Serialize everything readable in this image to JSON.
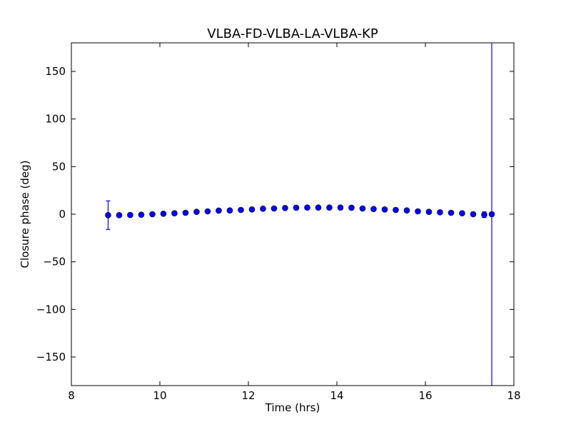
{
  "chart_data": {
    "type": "scatter",
    "title": "VLBA-FD-VLBA-LA-VLBA-KP",
    "xlabel": "Time (hrs)",
    "ylabel": "Closure phase (deg)",
    "xlim": [
      8,
      18
    ],
    "ylim": [
      -180,
      180
    ],
    "grid": false,
    "xticks": [
      8,
      10,
      12,
      14,
      16,
      18
    ],
    "xtick_labels": [
      "8",
      "10",
      "12",
      "14",
      "16",
      "18"
    ],
    "yticks": [
      -150,
      -100,
      -50,
      0,
      50,
      100,
      150
    ],
    "ytick_labels": [
      "−150",
      "−100",
      "−50",
      "0",
      "50",
      "100",
      "150"
    ],
    "colors": {
      "marker": "#0000ff",
      "marker_edge": "#000000",
      "errorbar": "#0000ff"
    },
    "points": [
      {
        "x": 8.83,
        "y": -1.0,
        "err": 15
      },
      {
        "x": 9.08,
        "y": -1.0
      },
      {
        "x": 9.33,
        "y": -0.8
      },
      {
        "x": 9.58,
        "y": -0.5
      },
      {
        "x": 9.83,
        "y": 0.0
      },
      {
        "x": 10.08,
        "y": 0.5
      },
      {
        "x": 10.33,
        "y": 1.0
      },
      {
        "x": 10.58,
        "y": 1.5
      },
      {
        "x": 10.83,
        "y": 2.5
      },
      {
        "x": 11.08,
        "y": 3.0
      },
      {
        "x": 11.33,
        "y": 3.8
      },
      {
        "x": 11.58,
        "y": 4.0
      },
      {
        "x": 11.83,
        "y": 4.5
      },
      {
        "x": 12.08,
        "y": 5.0
      },
      {
        "x": 12.33,
        "y": 5.8
      },
      {
        "x": 12.58,
        "y": 6.0
      },
      {
        "x": 12.83,
        "y": 6.5
      },
      {
        "x": 13.08,
        "y": 6.8
      },
      {
        "x": 13.33,
        "y": 7.0
      },
      {
        "x": 13.58,
        "y": 7.0
      },
      {
        "x": 13.83,
        "y": 7.0
      },
      {
        "x": 14.08,
        "y": 7.0
      },
      {
        "x": 14.33,
        "y": 6.8
      },
      {
        "x": 14.58,
        "y": 6.0
      },
      {
        "x": 14.83,
        "y": 5.5
      },
      {
        "x": 15.08,
        "y": 5.0
      },
      {
        "x": 15.33,
        "y": 4.5
      },
      {
        "x": 15.58,
        "y": 4.0
      },
      {
        "x": 15.83,
        "y": 3.0
      },
      {
        "x": 16.08,
        "y": 2.5
      },
      {
        "x": 16.33,
        "y": 2.0
      },
      {
        "x": 16.58,
        "y": 1.5
      },
      {
        "x": 16.83,
        "y": 1.0
      },
      {
        "x": 17.08,
        "y": 0.0
      },
      {
        "x": 17.33,
        "y": -0.5,
        "err": 3
      },
      {
        "x": 17.5,
        "y": 0.0,
        "err": 200
      }
    ]
  }
}
